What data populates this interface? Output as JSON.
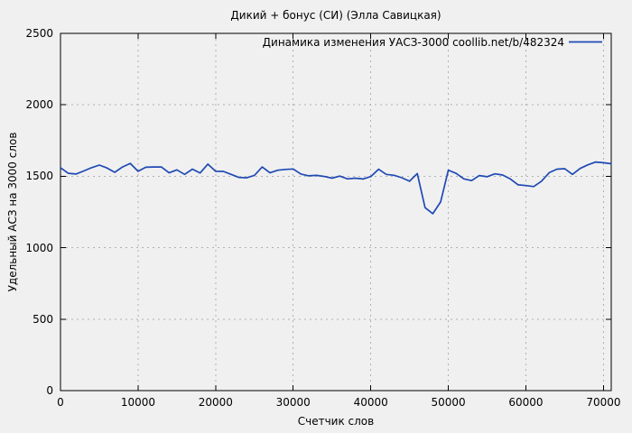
{
  "colors": {
    "background": "#f0f0f0",
    "line": "#1f49b4",
    "grid": "#b0b0b0",
    "border": "#000000",
    "text": "#000000"
  },
  "chart_data": {
    "type": "line",
    "title": "Дикий + бонус (СИ) (Элла Савицкая)",
    "xlabel": "Счетчик слов",
    "ylabel": "Удельный АСЗ на 3000 слов",
    "legend_label": "Динамика изменения УАСЗ-3000  coollib.net/b/482324",
    "legend_position": "top-right-inside",
    "grid": true,
    "grid_style": "dashed",
    "xlim": [
      0,
      71000
    ],
    "ylim": [
      0,
      2500
    ],
    "x_ticks": [
      0,
      10000,
      20000,
      30000,
      40000,
      50000,
      60000,
      70000
    ],
    "y_ticks": [
      0,
      500,
      1000,
      1500,
      2000,
      2500
    ],
    "series": [
      {
        "name": "Динамика изменения УАСЗ-3000  coollib.net/b/482324",
        "color": "#1f49b4",
        "x": [
          0,
          1000,
          2000,
          3000,
          4000,
          5000,
          6000,
          7000,
          8000,
          9000,
          10000,
          11000,
          12000,
          13000,
          14000,
          15000,
          16000,
          17000,
          18000,
          19000,
          20000,
          21000,
          22000,
          23000,
          24000,
          25000,
          26000,
          27000,
          28000,
          29000,
          30000,
          31000,
          32000,
          33000,
          34000,
          35000,
          36000,
          37000,
          38000,
          39000,
          40000,
          41000,
          42000,
          43000,
          44000,
          45000,
          46000,
          47000,
          48000,
          49000,
          50000,
          51000,
          52000,
          53000,
          54000,
          55000,
          56000,
          57000,
          58000,
          59000,
          60000,
          61000,
          62000,
          63000,
          64000,
          65000,
          66000,
          67000,
          68000,
          69000,
          70000,
          71000
        ],
        "values": [
          1560,
          1521,
          1516,
          1537,
          1560,
          1578,
          1558,
          1528,
          1565,
          1590,
          1535,
          1563,
          1565,
          1565,
          1524,
          1545,
          1513,
          1550,
          1523,
          1585,
          1535,
          1534,
          1513,
          1492,
          1489,
          1506,
          1565,
          1524,
          1542,
          1548,
          1551,
          1516,
          1503,
          1506,
          1499,
          1487,
          1501,
          1482,
          1487,
          1481,
          1498,
          1549,
          1513,
          1507,
          1490,
          1465,
          1519,
          1280,
          1238,
          1320,
          1543,
          1520,
          1482,
          1470,
          1505,
          1497,
          1517,
          1509,
          1481,
          1440,
          1435,
          1428,
          1465,
          1525,
          1550,
          1553,
          1513,
          1555,
          1580,
          1600,
          1595,
          1588
        ]
      }
    ]
  }
}
